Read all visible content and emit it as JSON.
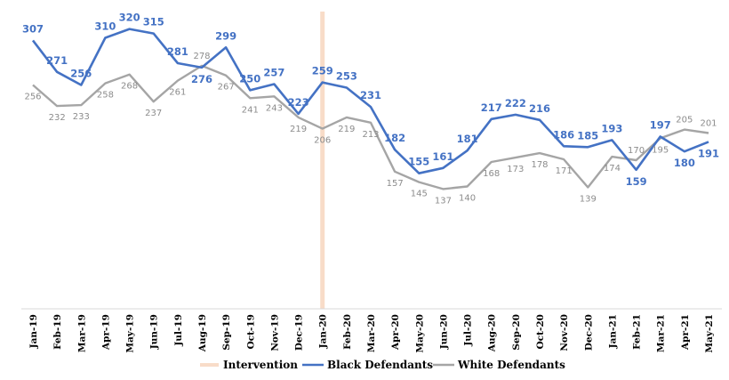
{
  "chart_data": {
    "type": "line",
    "categories": [
      "Jan-19",
      "Feb-19",
      "Mar-19",
      "Apr-19",
      "May-19",
      "Jun-19",
      "Jul-19",
      "Aug-19",
      "Sep-19",
      "Oct-19",
      "Nov-19",
      "Dec-19",
      "Jan-20",
      "Feb-20",
      "Mar-20",
      "Apr-20",
      "May-20",
      "Jun-20",
      "Jul-20",
      "Aug-20",
      "Sep-20",
      "Oct-20",
      "Nov-20",
      "Dec-20",
      "Jan-21",
      "Feb-21",
      "Mar-21",
      "Apr-21",
      "May-21"
    ],
    "series": [
      {
        "name": "Black Defendants",
        "color": "#4472c4",
        "values": [
          307,
          271,
          256,
          310,
          320,
          315,
          281,
          276,
          299,
          250,
          257,
          223,
          259,
          253,
          231,
          182,
          155,
          161,
          181,
          217,
          222,
          216,
          186,
          185,
          193,
          159,
          197,
          180,
          191
        ]
      },
      {
        "name": "White Defendants",
        "color": "#a5a5a5",
        "values": [
          256,
          232,
          233,
          258,
          268,
          237,
          261,
          278,
          267,
          241,
          243,
          219,
          206,
          219,
          213,
          157,
          145,
          137,
          140,
          168,
          173,
          178,
          171,
          139,
          174,
          170,
          195,
          205,
          201
        ]
      }
    ],
    "intervention": {
      "name": "Intervention",
      "category": "Jan-20",
      "color": "#f8dcc8"
    },
    "legend": [
      "Intervention",
      "Black Defendants",
      "White Defendants"
    ],
    "ylim": [
      0,
      340
    ],
    "title": "",
    "xlabel": "",
    "ylabel": "",
    "grid": false
  }
}
